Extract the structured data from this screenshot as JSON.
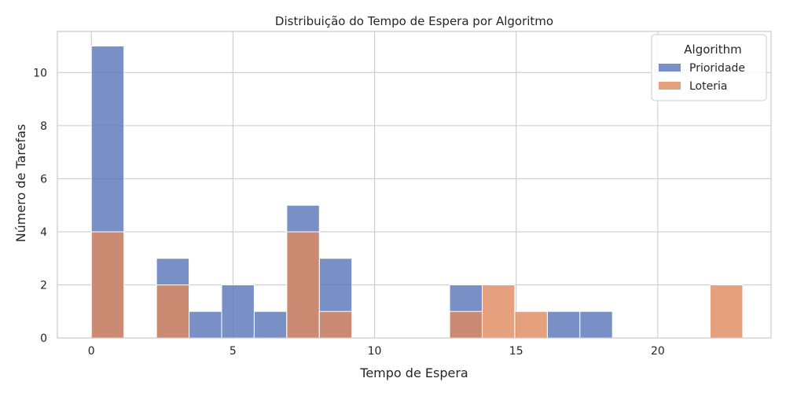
{
  "chart_data": {
    "type": "bar",
    "title": "Distribuição do Tempo de Espera por Algoritmo",
    "xlabel": "Tempo de Espera",
    "ylabel": "Número de Tarefas",
    "xlim": [
      -1.2,
      24.0
    ],
    "ylim": [
      0,
      11.55
    ],
    "xticks": [
      0,
      5,
      10,
      15,
      20
    ],
    "yticks": [
      0,
      2,
      4,
      6,
      8,
      10
    ],
    "bin_width": 1.15,
    "grid": true,
    "legend": {
      "title": "Algorithm",
      "placement": "top-right"
    },
    "series": [
      {
        "name": "Prioridade",
        "color": "#5874b8",
        "bins": [
          {
            "x_start": 0.0,
            "count": 11
          },
          {
            "x_start": 2.3,
            "count": 3
          },
          {
            "x_start": 3.45,
            "count": 1
          },
          {
            "x_start": 4.6,
            "count": 2
          },
          {
            "x_start": 5.75,
            "count": 1
          },
          {
            "x_start": 6.9,
            "count": 5
          },
          {
            "x_start": 8.05,
            "count": 3
          },
          {
            "x_start": 12.65,
            "count": 2
          },
          {
            "x_start": 16.1,
            "count": 1
          },
          {
            "x_start": 17.25,
            "count": 1
          }
        ]
      },
      {
        "name": "Loteria",
        "color": "#de8a5c",
        "bins": [
          {
            "x_start": 0.0,
            "count": 4
          },
          {
            "x_start": 2.3,
            "count": 2
          },
          {
            "x_start": 6.9,
            "count": 4
          },
          {
            "x_start": 8.05,
            "count": 1
          },
          {
            "x_start": 12.65,
            "count": 1
          },
          {
            "x_start": 13.8,
            "count": 2
          },
          {
            "x_start": 14.95,
            "count": 1
          },
          {
            "x_start": 21.85,
            "count": 2
          }
        ]
      }
    ]
  }
}
